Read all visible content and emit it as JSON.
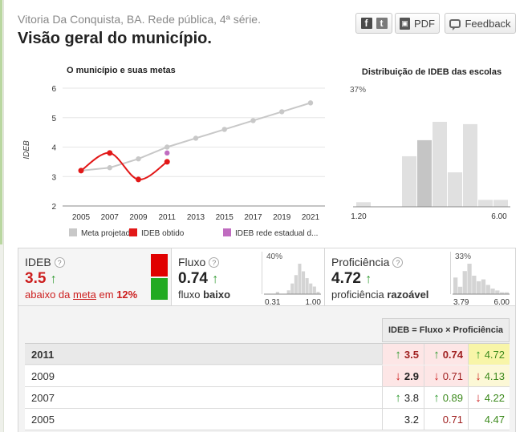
{
  "header": {
    "subtitle": "Vitoria Da Conquista, BA. Rede pública, 4ª série.",
    "title": "Visão geral do município.",
    "share_fb": "f",
    "share_tw": "t",
    "pdf_label": "PDF",
    "feedback_label": "Feedback"
  },
  "line_chart": {
    "title": "O município e suas metas",
    "ylabel": "IDEB",
    "x_ticks": [
      "2005",
      "2007",
      "2009",
      "2011",
      "2013",
      "2015",
      "2017",
      "2019",
      "2021"
    ],
    "y_ticks": [
      "2",
      "3",
      "4",
      "5",
      "6"
    ],
    "legend": [
      "Meta projetada",
      "IDEB obtido",
      "IDEB rede estadual d..."
    ],
    "colors": {
      "meta": "#c8c8c8",
      "obtido": "#e21818",
      "estadual": "#c06cc0"
    }
  },
  "chart_data": [
    {
      "type": "line",
      "title": "O município e suas metas",
      "xlabel": "",
      "ylabel": "IDEB",
      "ylim": [
        2,
        6
      ],
      "x": [
        2005,
        2007,
        2009,
        2011,
        2013,
        2015,
        2017,
        2019,
        2021
      ],
      "series": [
        {
          "name": "Meta projetada",
          "x": [
            2005,
            2007,
            2009,
            2011,
            2013,
            2015,
            2017,
            2019,
            2021
          ],
          "values": [
            3.2,
            3.3,
            3.6,
            4.0,
            4.3,
            4.6,
            4.9,
            5.2,
            5.5
          ]
        },
        {
          "name": "IDEB obtido",
          "x": [
            2005,
            2007,
            2009,
            2011
          ],
          "values": [
            3.2,
            3.8,
            2.9,
            3.5
          ]
        },
        {
          "name": "IDEB rede estadual d...",
          "x": [
            2011
          ],
          "values": [
            3.8
          ]
        }
      ],
      "legend": "bottom"
    },
    {
      "type": "bar",
      "title": "Distribuição de IDEB das escolas",
      "x_range_labels": [
        "1.20",
        "6.00"
      ],
      "top_label": "37%",
      "values": [
        2,
        0,
        0,
        22,
        29,
        37,
        15,
        36,
        3,
        3
      ],
      "highlight_index": 4
    },
    {
      "type": "bar",
      "title": "Fluxo",
      "x_range_labels": [
        "0.31",
        "1.00"
      ],
      "top_label": "40%",
      "values": [
        0,
        0,
        0,
        3,
        0,
        0,
        5,
        14,
        25,
        40,
        30,
        21,
        14,
        10,
        3
      ]
    },
    {
      "type": "bar",
      "title": "Proficiência",
      "x_range_labels": [
        "3.79",
        "6.00"
      ],
      "top_label": "33%",
      "values": [
        18,
        8,
        25,
        33,
        20,
        14,
        16,
        10,
        6,
        4,
        2,
        2
      ]
    }
  ],
  "hist": {
    "title": "Distribuição de IDEB das escolas"
  },
  "panels": {
    "ideb": {
      "label": "IDEB",
      "value": "3.5",
      "arrow": "↑",
      "desc_pre": "abaixo da ",
      "desc_link": "meta",
      "desc_mid": " em ",
      "desc_pct": "12%"
    },
    "fluxo": {
      "label": "Fluxo",
      "value": "0.74",
      "arrow": "↑",
      "desc_pre": "fluxo ",
      "desc_bold": "baixo"
    },
    "prof": {
      "label": "Proficiência",
      "value": "4.72",
      "arrow": "↑",
      "desc_pre": "proficiência ",
      "desc_bold": "razoável"
    },
    "question": "?",
    "status_colors": [
      "#e00000",
      "#22aa22"
    ]
  },
  "table": {
    "header": "IDEB = Fluxo × Proficiência",
    "rows": [
      {
        "year": "2011",
        "ideb": "3.5",
        "ideb_arrow": "↑",
        "fluxo": "0.74",
        "fluxo_arrow": "↑",
        "prof": "4.72",
        "prof_arrow": "↑"
      },
      {
        "year": "2009",
        "ideb": "2.9",
        "ideb_arrow": "↓",
        "fluxo": "0.71",
        "fluxo_arrow": "↓",
        "prof": "4.13",
        "prof_arrow": "↓"
      },
      {
        "year": "2007",
        "ideb": "3.8",
        "ideb_arrow": "↑",
        "fluxo": "0.89",
        "fluxo_arrow": "↑",
        "prof": "4.22",
        "prof_arrow": "↓"
      },
      {
        "year": "2005",
        "ideb": "3.2",
        "ideb_arrow": "",
        "fluxo": "0.71",
        "fluxo_arrow": "",
        "prof": "4.47",
        "prof_arrow": ""
      }
    ]
  }
}
